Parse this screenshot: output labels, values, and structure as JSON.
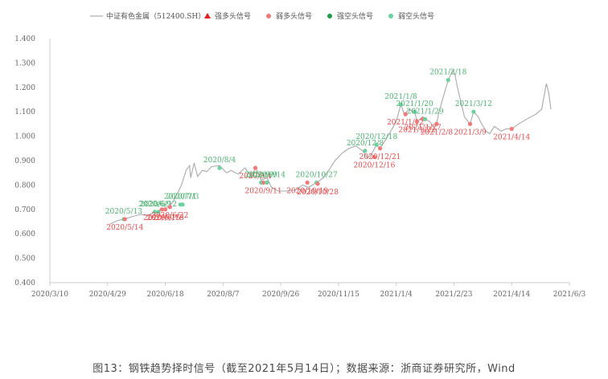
{
  "chart_data": {
    "type": "line",
    "series": [
      {
        "name": "中证有色金属（512400.SH）",
        "color": "#aaaaaa",
        "points": [
          [
            "2020-05-01",
            0.64
          ],
          [
            "2020-05-08",
            0.655
          ],
          [
            "2020-05-13",
            0.66
          ],
          [
            "2020-05-20",
            0.67
          ],
          [
            "2020-05-28",
            0.68
          ],
          [
            "2020-06-03",
            0.675
          ],
          [
            "2020-06-09",
            0.69
          ],
          [
            "2020-06-15",
            0.7
          ],
          [
            "2020-06-19",
            0.705
          ],
          [
            "2020-06-22",
            0.715
          ],
          [
            "2020-06-25",
            0.735
          ],
          [
            "2020-06-29",
            0.77
          ],
          [
            "2020-07-02",
            0.8
          ],
          [
            "2020-07-06",
            0.86
          ],
          [
            "2020-07-09",
            0.88
          ],
          [
            "2020-07-10",
            0.83
          ],
          [
            "2020-07-13",
            0.89
          ],
          [
            "2020-07-16",
            0.835
          ],
          [
            "2020-07-20",
            0.86
          ],
          [
            "2020-07-24",
            0.855
          ],
          [
            "2020-07-28",
            0.875
          ],
          [
            "2020-08-04",
            0.88
          ],
          [
            "2020-08-10",
            0.85
          ],
          [
            "2020-08-14",
            0.86
          ],
          [
            "2020-08-20",
            0.845
          ],
          [
            "2020-08-26",
            0.87
          ],
          [
            "2020-09-01",
            0.83
          ],
          [
            "2020-09-04",
            0.875
          ],
          [
            "2020-09-09",
            0.82
          ],
          [
            "2020-09-14",
            0.83
          ],
          [
            "2020-09-18",
            0.79
          ],
          [
            "2020-09-24",
            0.775
          ],
          [
            "2020-09-30",
            0.775
          ],
          [
            "2020-10-09",
            0.78
          ],
          [
            "2020-10-15",
            0.8
          ],
          [
            "2020-10-20",
            0.79
          ],
          [
            "2020-10-27",
            0.81
          ],
          [
            "2020-11-02",
            0.83
          ],
          [
            "2020-11-08",
            0.87
          ],
          [
            "2020-11-12",
            0.9
          ],
          [
            "2020-11-18",
            0.93
          ],
          [
            "2020-11-24",
            0.95
          ],
          [
            "2020-11-30",
            0.96
          ],
          [
            "2020-12-06",
            0.94
          ],
          [
            "2020-12-10",
            0.91
          ],
          [
            "2020-12-14",
            0.93
          ],
          [
            "2020-12-18",
            0.965
          ],
          [
            "2020-12-21",
            0.95
          ],
          [
            "2020-12-25",
            0.98
          ],
          [
            "2020-12-29",
            1.01
          ],
          [
            "2021-01-04",
            1.06
          ],
          [
            "2021-01-08",
            1.13
          ],
          [
            "2021-01-11",
            1.09
          ],
          [
            "2021-01-15",
            1.11
          ],
          [
            "2021-01-20",
            1.1
          ],
          [
            "2021-01-22",
            1.06
          ],
          [
            "2021-01-27",
            1.08
          ],
          [
            "2021-01-29",
            1.07
          ],
          [
            "2021-02-02",
            1.06
          ],
          [
            "2021-02-05",
            1.04
          ],
          [
            "2021-02-08",
            1.05
          ],
          [
            "2021-02-10",
            1.1
          ],
          [
            "2021-02-18",
            1.23
          ],
          [
            "2021-02-22",
            1.27
          ],
          [
            "2021-02-24",
            1.25
          ],
          [
            "2021-02-26",
            1.2
          ],
          [
            "2021-03-01",
            1.14
          ],
          [
            "2021-03-04",
            1.08
          ],
          [
            "2021-03-09",
            1.05
          ],
          [
            "2021-03-12",
            1.1
          ],
          [
            "2021-03-16",
            1.08
          ],
          [
            "2021-03-19",
            1.05
          ],
          [
            "2021-03-23",
            1.02
          ],
          [
            "2021-03-26",
            1.01
          ],
          [
            "2021-03-30",
            1.04
          ],
          [
            "2021-04-05",
            1.02
          ],
          [
            "2021-04-09",
            1.03
          ],
          [
            "2021-04-14",
            1.03
          ],
          [
            "2021-04-20",
            1.05
          ],
          [
            "2021-04-27",
            1.07
          ],
          [
            "2021-05-05",
            1.09
          ],
          [
            "2021-05-10",
            1.11
          ],
          [
            "2021-05-14",
            1.215
          ],
          [
            "2021-05-16",
            1.18
          ],
          [
            "2021-05-18",
            1.11
          ]
        ]
      }
    ],
    "legend": [
      {
        "name": "中证有色金属（512400.SH）",
        "marker": "line",
        "color": "#aaaaaa"
      },
      {
        "name": "强多头信号",
        "marker": "triangle",
        "color": "#e02020"
      },
      {
        "name": "弱多头信号",
        "marker": "circle",
        "color": "#f07a7a"
      },
      {
        "name": "强空头信号",
        "marker": "circle",
        "color": "#1f9a4a"
      },
      {
        "name": "弱空头信号",
        "marker": "circle",
        "color": "#6dd0a0"
      }
    ],
    "signals": [
      {
        "date": "2020-05-13",
        "value": 0.66,
        "kind": "short",
        "label": "2020/5/13"
      },
      {
        "date": "2020-05-14",
        "value": 0.66,
        "kind": "long",
        "label": "2020/5/14"
      },
      {
        "date": "2020-06-09",
        "value": 0.69,
        "kind": "short",
        "label": "2020/6/9"
      },
      {
        "date": "2020-06-12",
        "value": 0.69,
        "kind": "short",
        "label": "2020/6/12"
      },
      {
        "date": "2020-06-15",
        "value": 0.7,
        "kind": "long",
        "label": "2020/6/15"
      },
      {
        "date": "2020-06-18",
        "value": 0.7,
        "kind": "long",
        "label": "2020/6/18"
      },
      {
        "date": "2020-06-22",
        "value": 0.71,
        "kind": "long",
        "label": "2020/6/22"
      },
      {
        "date": "2020-07-01",
        "value": 0.72,
        "kind": "short",
        "label": "2020/7/1"
      },
      {
        "date": "2020-07-03",
        "value": 0.72,
        "kind": "short",
        "label": "2020/7/3"
      },
      {
        "date": "2020-08-04",
        "value": 0.87,
        "kind": "short",
        "label": "2020/8/4"
      },
      {
        "date": "2020-09-04",
        "value": 0.87,
        "kind": "long",
        "label": "2020/9/4"
      },
      {
        "date": "2020-09-09",
        "value": 0.81,
        "kind": "short",
        "label": "2020/9/9"
      },
      {
        "date": "2020-09-11",
        "value": 0.81,
        "kind": "long",
        "label": "2020/9/11"
      },
      {
        "date": "2020-09-14",
        "value": 0.81,
        "kind": "short",
        "label": "2020/9/14"
      },
      {
        "date": "2020-10-19",
        "value": 0.81,
        "kind": "long",
        "label": "2020/10/19"
      },
      {
        "date": "2020-10-27",
        "value": 0.81,
        "kind": "short",
        "label": "2020/10/27"
      },
      {
        "date": "2020-10-28",
        "value": 0.805,
        "kind": "long",
        "label": "2020/10/28"
      },
      {
        "date": "2020-12-08",
        "value": 0.94,
        "kind": "short",
        "label": "2020/12/8"
      },
      {
        "date": "2020-12-16",
        "value": 0.915,
        "kind": "long",
        "label": "2020/12/16"
      },
      {
        "date": "2020-12-18",
        "value": 0.965,
        "kind": "short",
        "label": "2020/12/18"
      },
      {
        "date": "2020-12-21",
        "value": 0.95,
        "kind": "long",
        "label": "2020/12/21"
      },
      {
        "date": "2021-01-08",
        "value": 1.13,
        "kind": "short",
        "label": "2021/1/8"
      },
      {
        "date": "2021-01-12",
        "value": 1.09,
        "kind": "long",
        "label": "2021/1/12"
      },
      {
        "date": "2021-01-20",
        "value": 1.1,
        "kind": "short",
        "label": "2021/1/20"
      },
      {
        "date": "2021-01-22",
        "value": 1.06,
        "kind": "long",
        "label": "2021/1/22"
      },
      {
        "date": "2021-01-27",
        "value": 1.07,
        "kind": "long",
        "label": "2021/1/27"
      },
      {
        "date": "2021-01-29",
        "value": 1.07,
        "kind": "short",
        "label": "2021/1/29"
      },
      {
        "date": "2021-02-08",
        "value": 1.05,
        "kind": "long",
        "label": "2021/2/8"
      },
      {
        "date": "2021-02-18",
        "value": 1.23,
        "kind": "short",
        "label": "2021/2/18"
      },
      {
        "date": "2021-03-09",
        "value": 1.05,
        "kind": "long",
        "label": "2021/3/9"
      },
      {
        "date": "2021-03-12",
        "value": 1.1,
        "kind": "short",
        "label": "2021/3/12"
      },
      {
        "date": "2021-04-14",
        "value": 1.03,
        "kind": "long",
        "label": "2021/4/14"
      }
    ],
    "ylim": [
      0.4,
      1.4
    ],
    "yticks": [
      "0.400",
      "0.500",
      "0.600",
      "0.700",
      "0.800",
      "0.900",
      "1.000",
      "1.100",
      "1.200",
      "1.300",
      "1.400"
    ],
    "xlim": [
      "2020-03-10",
      "2021-06-03"
    ],
    "xticks": [
      {
        "date": "2020-03-10",
        "label": "2020/3/10"
      },
      {
        "date": "2020-04-29",
        "label": "2020/4/29"
      },
      {
        "date": "2020-06-18",
        "label": "2020/6/18"
      },
      {
        "date": "2020-08-07",
        "label": "2020/8/7"
      },
      {
        "date": "2020-09-26",
        "label": "2020/9/26"
      },
      {
        "date": "2020-11-15",
        "label": "2020/11/15"
      },
      {
        "date": "2021-01-04",
        "label": "2021/1/4"
      },
      {
        "date": "2021-02-23",
        "label": "2021/2/23"
      },
      {
        "date": "2021-04-14",
        "label": "2021/4/14"
      },
      {
        "date": "2021-06-03",
        "label": "2021/6/3"
      }
    ],
    "grid": false,
    "legend_position": "top"
  },
  "caption": "图13：钢铁趋势择时信号（截至2021年5月14日）；数据来源：浙商证券研究所，Wind",
  "colors": {
    "long_label": "#e04a4a",
    "short_label": "#4caf70",
    "strong_short": "#1f9a4a",
    "weak_short": "#6dd0a0",
    "weak_long": "#f07a7a",
    "strong_long": "#e02020"
  }
}
